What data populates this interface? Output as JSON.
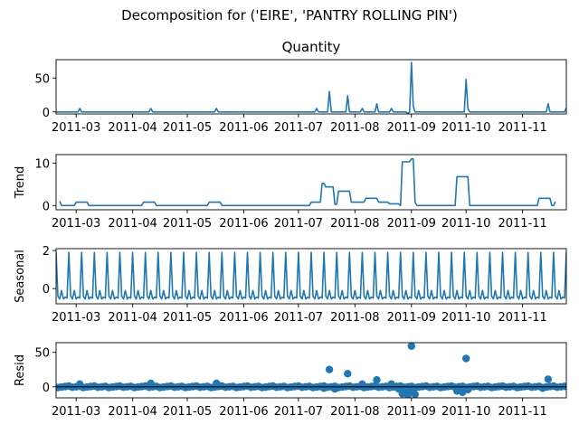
{
  "figure": {
    "suptitle": "Decomposition for ('EIRE', 'PANTRY ROLLING PIN')",
    "line_color": "#1f77b4"
  },
  "chart_data": [
    {
      "type": "line",
      "title": "Quantity",
      "ylabel": "",
      "x_start": "2011-02-18",
      "x_end": "2011-11-25",
      "xticks": [
        "2011-03",
        "2011-04",
        "2011-05",
        "2011-06",
        "2011-07",
        "2011-08",
        "2011-09",
        "2011-10",
        "2011-11"
      ],
      "ylim": [
        -3,
        77
      ],
      "yticks": [
        0,
        50
      ],
      "series": [
        {
          "points": [
            [
              "2011-02-18",
              0
            ],
            [
              "2011-03-02",
              0
            ],
            [
              "2011-03-03",
              5
            ],
            [
              "2011-03-04",
              0
            ],
            [
              "2011-04-10",
              0
            ],
            [
              "2011-04-11",
              5
            ],
            [
              "2011-04-12",
              0
            ],
            [
              "2011-05-16",
              0
            ],
            [
              "2011-05-17",
              5
            ],
            [
              "2011-05-18",
              0
            ],
            [
              "2011-07-10",
              0
            ],
            [
              "2011-07-11",
              5
            ],
            [
              "2011-07-12",
              0
            ],
            [
              "2011-07-17",
              0
            ],
            [
              "2011-07-18",
              30
            ],
            [
              "2011-07-19",
              0
            ],
            [
              "2011-07-27",
              0
            ],
            [
              "2011-07-28",
              24
            ],
            [
              "2011-07-29",
              0
            ],
            [
              "2011-08-04",
              0
            ],
            [
              "2011-08-05",
              5
            ],
            [
              "2011-08-06",
              0
            ],
            [
              "2011-08-12",
              0
            ],
            [
              "2011-08-13",
              12
            ],
            [
              "2011-08-14",
              0
            ],
            [
              "2011-08-20",
              0
            ],
            [
              "2011-08-21",
              5
            ],
            [
              "2011-08-22",
              0
            ],
            [
              "2011-08-29",
              0
            ],
            [
              "2011-08-30",
              -2
            ],
            [
              "2011-08-31",
              0
            ],
            [
              "2011-09-01",
              73
            ],
            [
              "2011-09-02",
              8
            ],
            [
              "2011-09-03",
              0
            ],
            [
              "2011-09-30",
              0
            ],
            [
              "2011-10-01",
              48
            ],
            [
              "2011-10-02",
              5
            ],
            [
              "2011-10-03",
              0
            ],
            [
              "2011-11-14",
              0
            ],
            [
              "2011-11-15",
              12
            ],
            [
              "2011-11-16",
              0
            ],
            [
              "2011-11-24",
              0
            ],
            [
              "2011-11-25",
              6
            ]
          ]
        }
      ]
    },
    {
      "type": "line",
      "title": "",
      "ylabel": "Trend",
      "x_start": "2011-02-18",
      "x_end": "2011-11-25",
      "xticks": [
        "2011-03",
        "2011-04",
        "2011-05",
        "2011-06",
        "2011-07",
        "2011-08",
        "2011-09",
        "2011-10",
        "2011-11"
      ],
      "ylim": [
        -1,
        12
      ],
      "yticks": [
        0,
        10
      ],
      "series": [
        {
          "points": [
            [
              "2011-02-20",
              1
            ],
            [
              "2011-02-21",
              0
            ],
            [
              "2011-02-28",
              0
            ],
            [
              "2011-03-01",
              0.8
            ],
            [
              "2011-03-07",
              0.8
            ],
            [
              "2011-03-08",
              0
            ],
            [
              "2011-04-06",
              0
            ],
            [
              "2011-04-07",
              0.8
            ],
            [
              "2011-04-13",
              0.8
            ],
            [
              "2011-04-14",
              0
            ],
            [
              "2011-05-12",
              0
            ],
            [
              "2011-05-13",
              0.8
            ],
            [
              "2011-05-19",
              0.8
            ],
            [
              "2011-05-20",
              0
            ],
            [
              "2011-07-07",
              0
            ],
            [
              "2011-07-08",
              0.8
            ],
            [
              "2011-07-13",
              0.8
            ],
            [
              "2011-07-14",
              5.2
            ],
            [
              "2011-07-15",
              5.2
            ],
            [
              "2011-07-16",
              4.4
            ],
            [
              "2011-07-20",
              4.4
            ],
            [
              "2011-07-21",
              0.3
            ],
            [
              "2011-07-22",
              0.3
            ],
            [
              "2011-07-23",
              3.4
            ],
            [
              "2011-07-29",
              3.4
            ],
            [
              "2011-07-30",
              0.8
            ],
            [
              "2011-08-06",
              0.8
            ],
            [
              "2011-08-07",
              1.7
            ],
            [
              "2011-08-13",
              1.7
            ],
            [
              "2011-08-14",
              0.8
            ],
            [
              "2011-08-19",
              0.8
            ],
            [
              "2011-08-20",
              0.4
            ],
            [
              "2011-08-25",
              0.4
            ],
            [
              "2011-08-26",
              0
            ],
            [
              "2011-08-27",
              10.3
            ],
            [
              "2011-08-31",
              10.3
            ],
            [
              "2011-09-01",
              11
            ],
            [
              "2011-09-02",
              11
            ],
            [
              "2011-09-03",
              0.8
            ],
            [
              "2011-09-04",
              0
            ],
            [
              "2011-09-25",
              0
            ],
            [
              "2011-09-26",
              6.8
            ],
            [
              "2011-10-02",
              6.8
            ],
            [
              "2011-10-03",
              0
            ],
            [
              "2011-11-09",
              0
            ],
            [
              "2011-11-10",
              1.7
            ],
            [
              "2011-11-16",
              1.7
            ],
            [
              "2011-11-17",
              0
            ],
            [
              "2011-11-18",
              0
            ],
            [
              "2011-11-19",
              0.9
            ]
          ]
        }
      ]
    },
    {
      "type": "line",
      "title": "",
      "ylabel": "Seasonal",
      "x_start": "2011-02-18",
      "x_end": "2011-11-25",
      "xticks": [
        "2011-03",
        "2011-04",
        "2011-05",
        "2011-06",
        "2011-07",
        "2011-08",
        "2011-09",
        "2011-10",
        "2011-11"
      ],
      "ylim": [
        -0.8,
        2.1
      ],
      "yticks": [
        0,
        2
      ],
      "period_days": 7,
      "period_start": "2011-02-18",
      "weekly_pattern": [
        1.9,
        -0.4,
        -0.55,
        -0.1,
        -0.55,
        -0.45,
        -0.5
      ]
    },
    {
      "type": "scatter",
      "title": "",
      "ylabel": "Resid",
      "x_start": "2011-02-18",
      "x_end": "2011-11-25",
      "xticks": [
        "2011-03",
        "2011-04",
        "2011-05",
        "2011-06",
        "2011-07",
        "2011-08",
        "2011-09",
        "2011-10",
        "2011-11"
      ],
      "ylim": [
        -16,
        64
      ],
      "yticks": [
        0,
        50
      ],
      "zero_line": true,
      "outliers": [
        [
          "2011-03-03",
          4
        ],
        [
          "2011-04-11",
          5
        ],
        [
          "2011-05-17",
          5
        ],
        [
          "2011-07-15",
          -2
        ],
        [
          "2011-07-18",
          25
        ],
        [
          "2011-07-21",
          -3
        ],
        [
          "2011-07-28",
          19
        ],
        [
          "2011-08-05",
          4
        ],
        [
          "2011-08-13",
          10
        ],
        [
          "2011-08-21",
          4
        ],
        [
          "2011-08-25",
          -3
        ],
        [
          "2011-08-27",
          -10
        ],
        [
          "2011-08-28",
          -8
        ],
        [
          "2011-08-30",
          -12
        ],
        [
          "2011-08-31",
          -6
        ],
        [
          "2011-09-01",
          59
        ],
        [
          "2011-09-03",
          -11
        ],
        [
          "2011-09-26",
          -6
        ],
        [
          "2011-09-29",
          -8
        ],
        [
          "2011-10-01",
          41
        ],
        [
          "2011-10-02",
          -4
        ],
        [
          "2011-11-15",
          11
        ],
        [
          "2011-11-12",
          -2
        ]
      ]
    }
  ]
}
